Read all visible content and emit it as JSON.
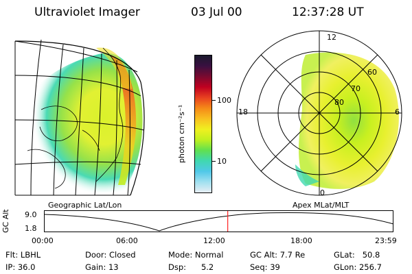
{
  "header": {
    "instrument": "Ultraviolet Imager",
    "date": "03 Jul 00",
    "time": "12:37:28 UT"
  },
  "geo_panel": {
    "label": "Geographic Lat/Lon"
  },
  "polar_panel": {
    "label": "Apex MLat/MLT",
    "mlt_labels": [
      "12",
      "18",
      "6",
      "0"
    ],
    "lat_labels": [
      "60",
      "70",
      "80"
    ]
  },
  "colorbar": {
    "unit_label": "photon cm⁻²s⁻¹",
    "ticks": [
      "100",
      "10"
    ],
    "colors": [
      "#1a1a2e",
      "#3a1040",
      "#7a0a30",
      "#c00020",
      "#e84020",
      "#f58a18",
      "#f8c020",
      "#f0f020",
      "#c0f020",
      "#60e050",
      "#40d8b0",
      "#50c8e8",
      "#a0e0f0",
      "#e8eef4"
    ]
  },
  "altitude_plot": {
    "ylabel": "GC Alt",
    "yticks": [
      "9.0",
      "1.8"
    ],
    "xticks": [
      "00:00",
      "06:00",
      "12:00",
      "18:00",
      "23:59"
    ],
    "current_time_hours": 12.62,
    "marker_color": "#ff2020"
  },
  "info": {
    "filter": "Flt: LBHL",
    "ip": "IP: 36.0",
    "door": "Door: Closed",
    "gain": "Gain: 13",
    "mode": "Mode: Normal",
    "dsp": "Dsp:      5.2",
    "gc_alt": "GC Alt: 7.7 Re",
    "seq": "Seq: 39",
    "glat": "GLat:   50.8",
    "glon": "GLon: 256.7"
  }
}
